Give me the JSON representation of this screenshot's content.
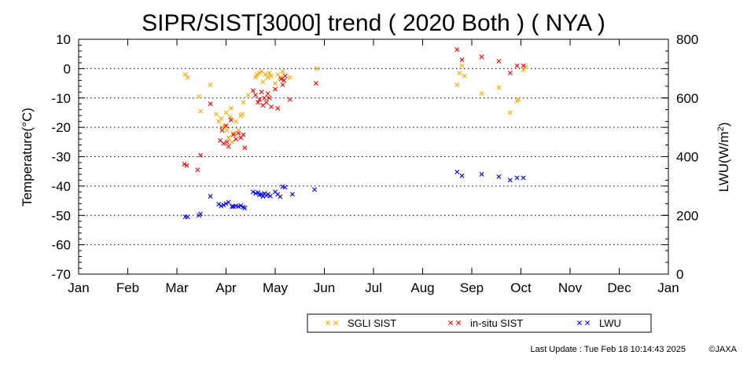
{
  "chart_data": {
    "type": "scatter",
    "title": "SIPR/SIST[3000] trend ( 2020 Both ) ( NYA )",
    "ylabel": "Temperature(°C)",
    "y2label_main": "LWU(W/m",
    "y2label_sup": "2",
    "y2label_end": ")",
    "ylim": [
      -70,
      10
    ],
    "yticks": [
      "10",
      "0",
      "-10",
      "-20",
      "-30",
      "-40",
      "-50",
      "-60",
      "-70"
    ],
    "y2lim": [
      0,
      800
    ],
    "y2ticks": [
      "800",
      "600",
      "400",
      "200",
      "0"
    ],
    "xlim": [
      0,
      12
    ],
    "xticks": [
      "Jan",
      "Feb",
      "Mar",
      "Apr",
      "May",
      "Jun",
      "Jul",
      "Aug",
      "Sep",
      "Oct",
      "Nov",
      "Dec",
      "Jan"
    ],
    "grid": "horizontal dotted",
    "legend_position": "bottom-right",
    "series": [
      {
        "name": "SGLI SIST",
        "axis": "left",
        "color": "#FFA500",
        "points": [
          [
            2.17,
            -2.0
          ],
          [
            2.22,
            -3.0
          ],
          [
            2.45,
            -9.5
          ],
          [
            2.48,
            -14.5
          ],
          [
            2.68,
            -5.5
          ],
          [
            2.8,
            -15.5
          ],
          [
            2.85,
            -18.0
          ],
          [
            2.9,
            -17.0
          ],
          [
            2.92,
            -20.0
          ],
          [
            2.97,
            -19.5
          ],
          [
            3.0,
            -15.0
          ],
          [
            3.02,
            -21.0
          ],
          [
            3.05,
            -23.5
          ],
          [
            3.08,
            -16.5
          ],
          [
            3.1,
            -13.5
          ],
          [
            3.12,
            -25.0
          ],
          [
            3.15,
            -22.0
          ],
          [
            3.2,
            -18.0
          ],
          [
            3.25,
            -21.0
          ],
          [
            3.3,
            -16.0
          ],
          [
            3.33,
            -15.5
          ],
          [
            3.35,
            -11.5
          ],
          [
            3.45,
            -9.0
          ],
          [
            3.6,
            -3.0
          ],
          [
            3.63,
            -2.0
          ],
          [
            3.68,
            -1.5
          ],
          [
            3.72,
            -1.0
          ],
          [
            3.75,
            -4.5
          ],
          [
            3.8,
            -2.0
          ],
          [
            3.85,
            -3.0
          ],
          [
            3.88,
            -1.5
          ],
          [
            3.92,
            -2.5
          ],
          [
            4.0,
            -5.0
          ],
          [
            4.05,
            -2.0
          ],
          [
            4.1,
            -3.0
          ],
          [
            4.15,
            -1.0
          ],
          [
            4.3,
            -3.0
          ],
          [
            4.85,
            0.0
          ],
          [
            7.7,
            -5.5
          ],
          [
            7.75,
            -1.5
          ],
          [
            7.8,
            1.0
          ],
          [
            7.85,
            -2.5
          ],
          [
            8.2,
            -8.5
          ],
          [
            8.55,
            -6.5
          ],
          [
            8.78,
            -15.0
          ],
          [
            8.92,
            -11.0
          ],
          [
            8.95,
            -10.5
          ],
          [
            9.05,
            -0.5
          ],
          [
            9.1,
            0.5
          ]
        ]
      },
      {
        "name": "in-situ SIST",
        "axis": "left",
        "color": "#FF0000",
        "points": [
          [
            2.15,
            -32.5
          ],
          [
            2.2,
            -33.0
          ],
          [
            2.42,
            -34.5
          ],
          [
            2.48,
            -29.5
          ],
          [
            2.68,
            -12.0
          ],
          [
            2.88,
            -24.5
          ],
          [
            2.92,
            -21.0
          ],
          [
            2.95,
            -25.5
          ],
          [
            3.0,
            -19.5
          ],
          [
            3.02,
            -25.0
          ],
          [
            3.05,
            -26.5
          ],
          [
            3.1,
            -17.5
          ],
          [
            3.15,
            -22.5
          ],
          [
            3.2,
            -24.0
          ],
          [
            3.25,
            -22.0
          ],
          [
            3.3,
            -23.5
          ],
          [
            3.35,
            -22.5
          ],
          [
            3.38,
            -27.0
          ],
          [
            3.55,
            -7.5
          ],
          [
            3.6,
            -9.0
          ],
          [
            3.65,
            -11.5
          ],
          [
            3.68,
            -10.5
          ],
          [
            3.72,
            -8.0
          ],
          [
            3.75,
            -12.5
          ],
          [
            3.78,
            -10.0
          ],
          [
            3.82,
            -11.5
          ],
          [
            3.85,
            -8.5
          ],
          [
            3.88,
            -10.0
          ],
          [
            3.92,
            -13.0
          ],
          [
            4.0,
            -7.0
          ],
          [
            4.05,
            -13.5
          ],
          [
            4.12,
            -3.5
          ],
          [
            4.15,
            -5.5
          ],
          [
            4.18,
            -4.0
          ],
          [
            4.2,
            -2.5
          ],
          [
            4.3,
            -10.5
          ],
          [
            4.83,
            -5.0
          ],
          [
            7.7,
            6.5
          ],
          [
            7.8,
            3.0
          ],
          [
            8.2,
            4.0
          ],
          [
            8.55,
            2.5
          ],
          [
            8.78,
            -1.5
          ],
          [
            8.92,
            1.0
          ],
          [
            9.05,
            1.0
          ]
        ]
      },
      {
        "name": "LWU",
        "axis": "right",
        "color": "#0000FF",
        "points": [
          [
            2.17,
            195
          ],
          [
            2.22,
            195
          ],
          [
            2.45,
            200
          ],
          [
            2.48,
            205
          ],
          [
            2.68,
            265
          ],
          [
            2.85,
            238
          ],
          [
            2.9,
            232
          ],
          [
            2.95,
            235
          ],
          [
            3.0,
            240
          ],
          [
            3.05,
            245
          ],
          [
            3.12,
            230
          ],
          [
            3.15,
            230
          ],
          [
            3.2,
            232
          ],
          [
            3.25,
            230
          ],
          [
            3.3,
            233
          ],
          [
            3.35,
            228
          ],
          [
            3.38,
            225
          ],
          [
            3.55,
            280
          ],
          [
            3.6,
            275
          ],
          [
            3.65,
            278
          ],
          [
            3.68,
            270
          ],
          [
            3.72,
            272
          ],
          [
            3.75,
            265
          ],
          [
            3.78,
            275
          ],
          [
            3.82,
            268
          ],
          [
            3.85,
            272
          ],
          [
            3.9,
            266
          ],
          [
            4.0,
            280
          ],
          [
            4.05,
            272
          ],
          [
            4.1,
            264
          ],
          [
            4.15,
            298
          ],
          [
            4.2,
            296
          ],
          [
            4.35,
            272
          ],
          [
            4.8,
            288
          ],
          [
            7.7,
            348
          ],
          [
            7.8,
            335
          ],
          [
            8.2,
            340
          ],
          [
            8.55,
            332
          ],
          [
            8.78,
            320
          ],
          [
            8.92,
            328
          ],
          [
            9.05,
            328
          ]
        ]
      }
    ]
  },
  "footer": {
    "last_update": "Last Update : Tue Feb 18 10:14:43 2025",
    "copyright": "©JAXA"
  }
}
